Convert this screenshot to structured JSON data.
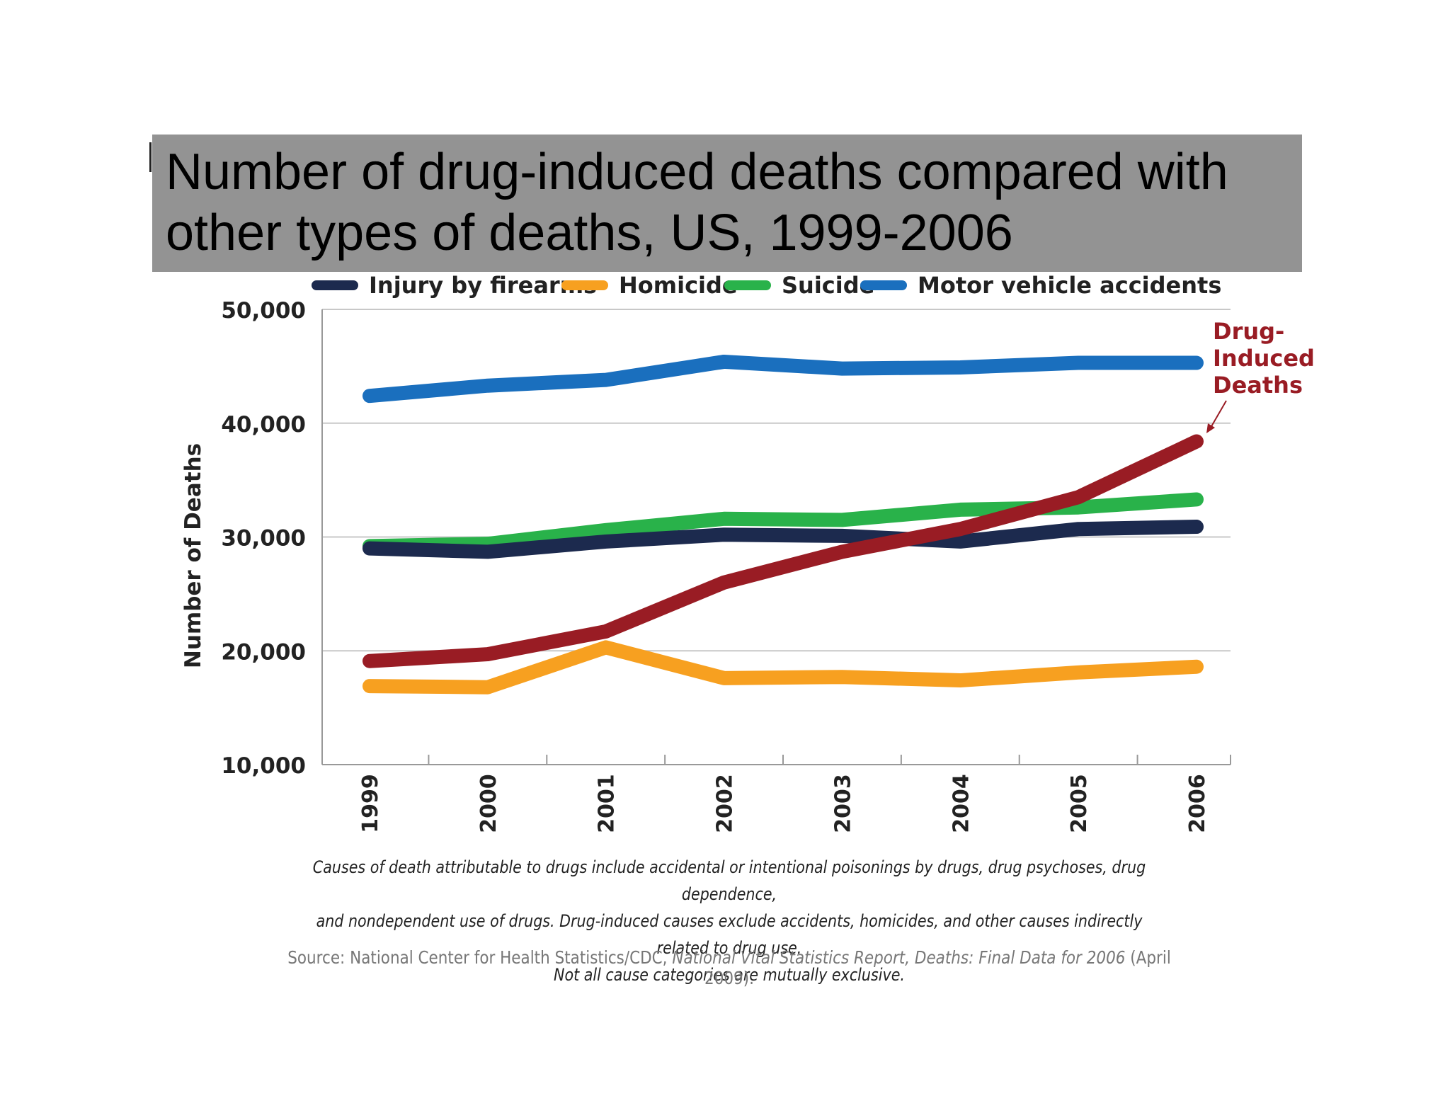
{
  "title": "Number of drug-induced deaths compared with\nother types of deaths, US, 1999-2006",
  "chart_data": {
    "type": "line",
    "x": [
      "1999",
      "2000",
      "2001",
      "2002",
      "2003",
      "2004",
      "2005",
      "2006"
    ],
    "ylabel": "Number of Deaths",
    "xlabel": "",
    "ylim": [
      10000,
      50000
    ],
    "yticks": [
      "10,000",
      "20,000",
      "30,000",
      "40,000",
      "50,000"
    ],
    "ytick_values": [
      10000,
      20000,
      30000,
      40000,
      50000
    ],
    "grid": "horizontal",
    "legend_position": "top",
    "series": [
      {
        "name": "Injury by firearms",
        "color": "#1c2a4e",
        "values": [
          29000,
          28700,
          29600,
          30200,
          30100,
          29600,
          30700,
          30900
        ]
      },
      {
        "name": "Homicide",
        "color": "#f7a020",
        "values": [
          16900,
          16800,
          20300,
          17600,
          17700,
          17400,
          18100,
          18600
        ]
      },
      {
        "name": "Suicide",
        "color": "#29b24a",
        "values": [
          29200,
          29400,
          30600,
          31600,
          31500,
          32400,
          32600,
          33300
        ]
      },
      {
        "name": "Motor vehicle accidents",
        "color": "#1a6fbe",
        "values": [
          42400,
          43300,
          43800,
          45400,
          44800,
          44900,
          45300,
          45300
        ]
      },
      {
        "name": "Drug-Induced Deaths",
        "color": "#991c24",
        "values": [
          19100,
          19700,
          21700,
          26000,
          28700,
          30700,
          33500,
          38400
        ],
        "in_legend": false
      }
    ],
    "annotation": "Drug-\nInduced\nDeaths"
  },
  "footnote": "Causes of death attributable to drugs include accidental or intentional poisonings by drugs, drug psychoses, drug dependence,\nand nondependent use of drugs. Drug-induced causes exclude accidents, homicides, and other causes indirectly related to drug use.\nNot all cause categories are mutually exclusive.",
  "source": {
    "prefix": "Source: National Center for Health Statistics/CDC, ",
    "italic": "National Vital Statistics Report, Deaths:  Final Data for 2006",
    "suffix": " (April 2009)."
  }
}
